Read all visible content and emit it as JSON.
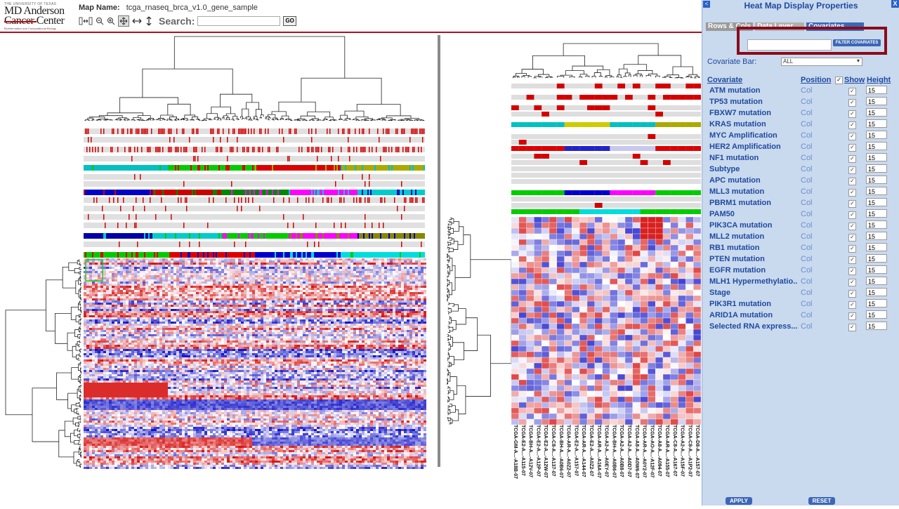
{
  "header": {
    "logo_tagline": "THE UNIVERSITY OF TEXAS",
    "logo_line1": "MD Anderson",
    "logo_line2": "Cancer Center",
    "logo_sub": "Bioinformatics and Computational Biology",
    "map_name_label": "Map Name:",
    "map_name": "tcga_rnaseq_brca_v1.0_gene_sample",
    "search_label": "Search:",
    "search_value": "",
    "go_label": "GO"
  },
  "colors": {
    "accent_red": "#b01020",
    "heat_red": "#d40000",
    "heat_blue": "#1010c8",
    "panel_bg": "#c9d9ee",
    "label_blue": "#1f4aa0",
    "highlight_box": "#8b0b1a"
  },
  "detail": {
    "column_labels": [
      "TCGA-GM-A...-A18B-07",
      "TCGA-E2-A...-A115-07",
      "TCGA-BH-A...-A12V-07",
      "TCGA-E2-A...-A12P-07",
      "TCGA-E2-A...-A12W-07",
      "TCGA-C8-A...-A137-07",
      "TCGA-BH-A...-A0B6-07",
      "TCGA-AR-A...-A0Z2-07",
      "TCGA-E2-A...-A157-07",
      "TCGA-AR-A...-A144-07",
      "TCGA-E2-A...-A0Z2-07",
      "TCGA-AR-A...-A16A-07",
      "TCGA-A2-A...-A0EY-07",
      "TCGA-BH-A...-A0B6-07",
      "TCGA-A2-A...-A0B8-07",
      "TCGA-A2-A...-A0D7-07",
      "TCGA-A8-A...-A0W6-07",
      "TCGA-AR-A...-A0Y2-07",
      "TCGA-AO-A...-A12F-07",
      "TCGA-A8-A...-A094-07",
      "TCGA-AR-A...-A155-07",
      "TCGA-C8-A...-A167-07",
      "TCGA-A2-A...-A15F-07",
      "TCGA-C8-A...-A1P2-07",
      "TCGA-D8-A...-A157-07"
    ]
  },
  "panel": {
    "title": "Heat Map Display Properties",
    "collapse_label": "<",
    "close_label": "X",
    "tabs": [
      {
        "label": "Rows & Cols"
      },
      {
        "label": "Data Layer"
      },
      {
        "label": "Covariates"
      }
    ],
    "filter_placeholder": "",
    "filter_button": "FILTER COVARIATES",
    "covariate_bar_label": "Covariate Bar:",
    "covariate_bar_value": "ALL",
    "columns": {
      "covariate": "Covariate",
      "position": "Position",
      "show": "Show",
      "height": "Height"
    },
    "check_mark": "✓",
    "covariates": [
      {
        "name": "ATM mutation",
        "position": "Col",
        "height": "15"
      },
      {
        "name": "TP53 mutation",
        "position": "Col",
        "height": "15"
      },
      {
        "name": "FBXW7 mutation",
        "position": "Col",
        "height": "15"
      },
      {
        "name": "KRAS mutation",
        "position": "Col",
        "height": "15"
      },
      {
        "name": "MYC Amplification",
        "position": "Col",
        "height": "15"
      },
      {
        "name": "HER2 Amplification",
        "position": "Col",
        "height": "15"
      },
      {
        "name": "NF1 mutation",
        "position": "Col",
        "height": "15"
      },
      {
        "name": "Subtype",
        "position": "Col",
        "height": "15"
      },
      {
        "name": "APC mutation",
        "position": "Col",
        "height": "15"
      },
      {
        "name": "MLL3 mutation",
        "position": "Col",
        "height": "15"
      },
      {
        "name": "PBRM1 mutation",
        "position": "Col",
        "height": "15"
      },
      {
        "name": "PAM50",
        "position": "Col",
        "height": "15"
      },
      {
        "name": "PIK3CA mutation",
        "position": "Col",
        "height": "15"
      },
      {
        "name": "MLL2 mutation",
        "position": "Col",
        "height": "15"
      },
      {
        "name": "RB1 mutation",
        "position": "Col",
        "height": "15"
      },
      {
        "name": "PTEN mutation",
        "position": "Col",
        "height": "15"
      },
      {
        "name": "EGFR mutation",
        "position": "Col",
        "height": "15"
      },
      {
        "name": "MLH1 Hypermethylatio...",
        "position": "Col",
        "height": "15"
      },
      {
        "name": "Stage",
        "position": "Col",
        "height": "15"
      },
      {
        "name": "PIK3R1 mutation",
        "position": "Col",
        "height": "15"
      },
      {
        "name": "ARID1A mutation",
        "position": "Col",
        "height": "15"
      },
      {
        "name": "Selected RNA express...",
        "position": "Col",
        "height": "15"
      }
    ],
    "apply_label": "APPLY",
    "reset_label": "RESET"
  }
}
